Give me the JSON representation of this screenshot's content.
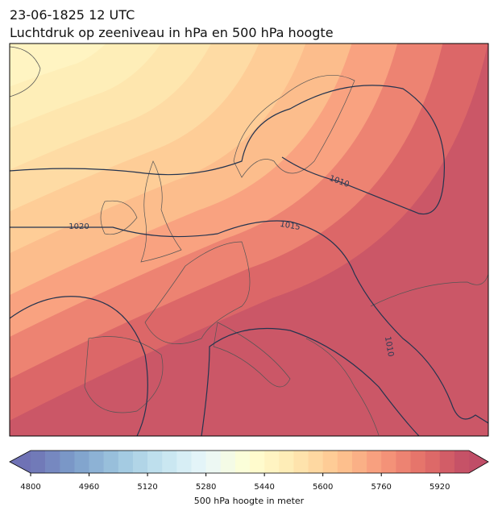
{
  "header": {
    "title": "23-06-1825 12 UTC",
    "subtitle": "Luchtdruk op zeeniveau in hPa en 500 hPa hoogte"
  },
  "map": {
    "contour_labels": [
      "1020",
      "1015",
      "1010",
      "1010"
    ]
  },
  "colorbar": {
    "label": "500 hPa hoogte in meter",
    "range": [
      4800,
      6000
    ],
    "step": 40,
    "ticks": [
      4800,
      4960,
      5120,
      5280,
      5440,
      5600,
      5760,
      5920
    ]
  }
}
